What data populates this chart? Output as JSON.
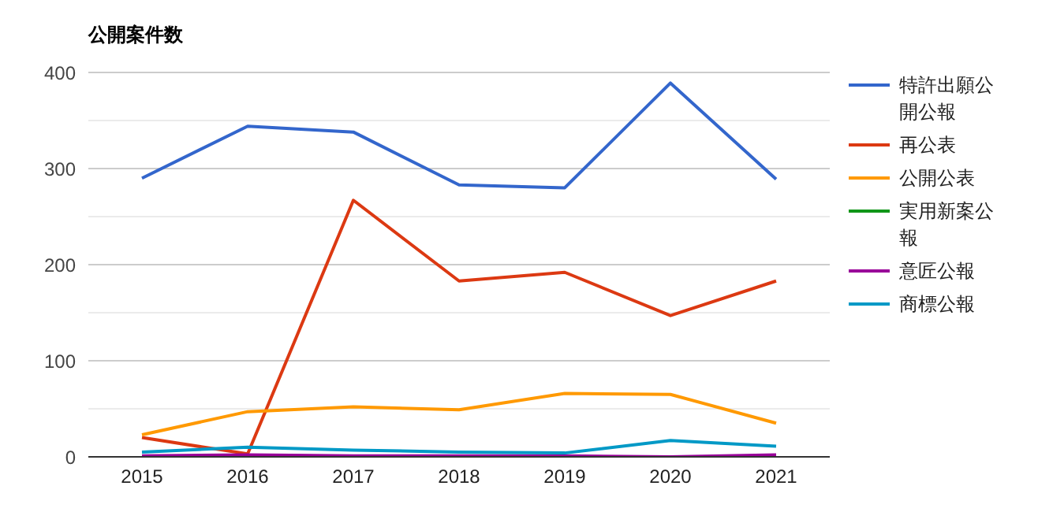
{
  "chart_data": {
    "type": "line",
    "title": "公開案件数",
    "categories": [
      "2015",
      "2016",
      "2017",
      "2018",
      "2019",
      "2020",
      "2021"
    ],
    "series": [
      {
        "name": "特許出願公開公報",
        "color": "#3366cc",
        "values": [
          290,
          344,
          338,
          283,
          280,
          389,
          289
        ]
      },
      {
        "name": "再公表",
        "color": "#dc3912",
        "values": [
          20,
          3,
          267,
          183,
          192,
          147,
          183
        ]
      },
      {
        "name": "公開公表",
        "color": "#ff9900",
        "values": [
          23,
          47,
          52,
          49,
          66,
          65,
          35
        ]
      },
      {
        "name": "実用新案公報",
        "color": "#109618",
        "values": [
          null,
          null,
          null,
          null,
          null,
          null,
          null
        ]
      },
      {
        "name": "意匠公報",
        "color": "#990099",
        "values": [
          1,
          2,
          1,
          1,
          1,
          0,
          2
        ]
      },
      {
        "name": "商標公報",
        "color": "#0099c6",
        "values": [
          5,
          10,
          7,
          5,
          4,
          17,
          11
        ]
      }
    ],
    "ylim": [
      0,
      400
    ],
    "yticks": [
      0,
      {
        "value": 50,
        "label": null
      },
      100,
      {
        "value": 150,
        "label": null
      },
      200,
      {
        "value": 250,
        "label": null
      },
      300,
      {
        "value": 350,
        "label": null
      },
      400
    ],
    "grid": "y",
    "legend": "right",
    "marker": "none",
    "line_style": "solid"
  }
}
